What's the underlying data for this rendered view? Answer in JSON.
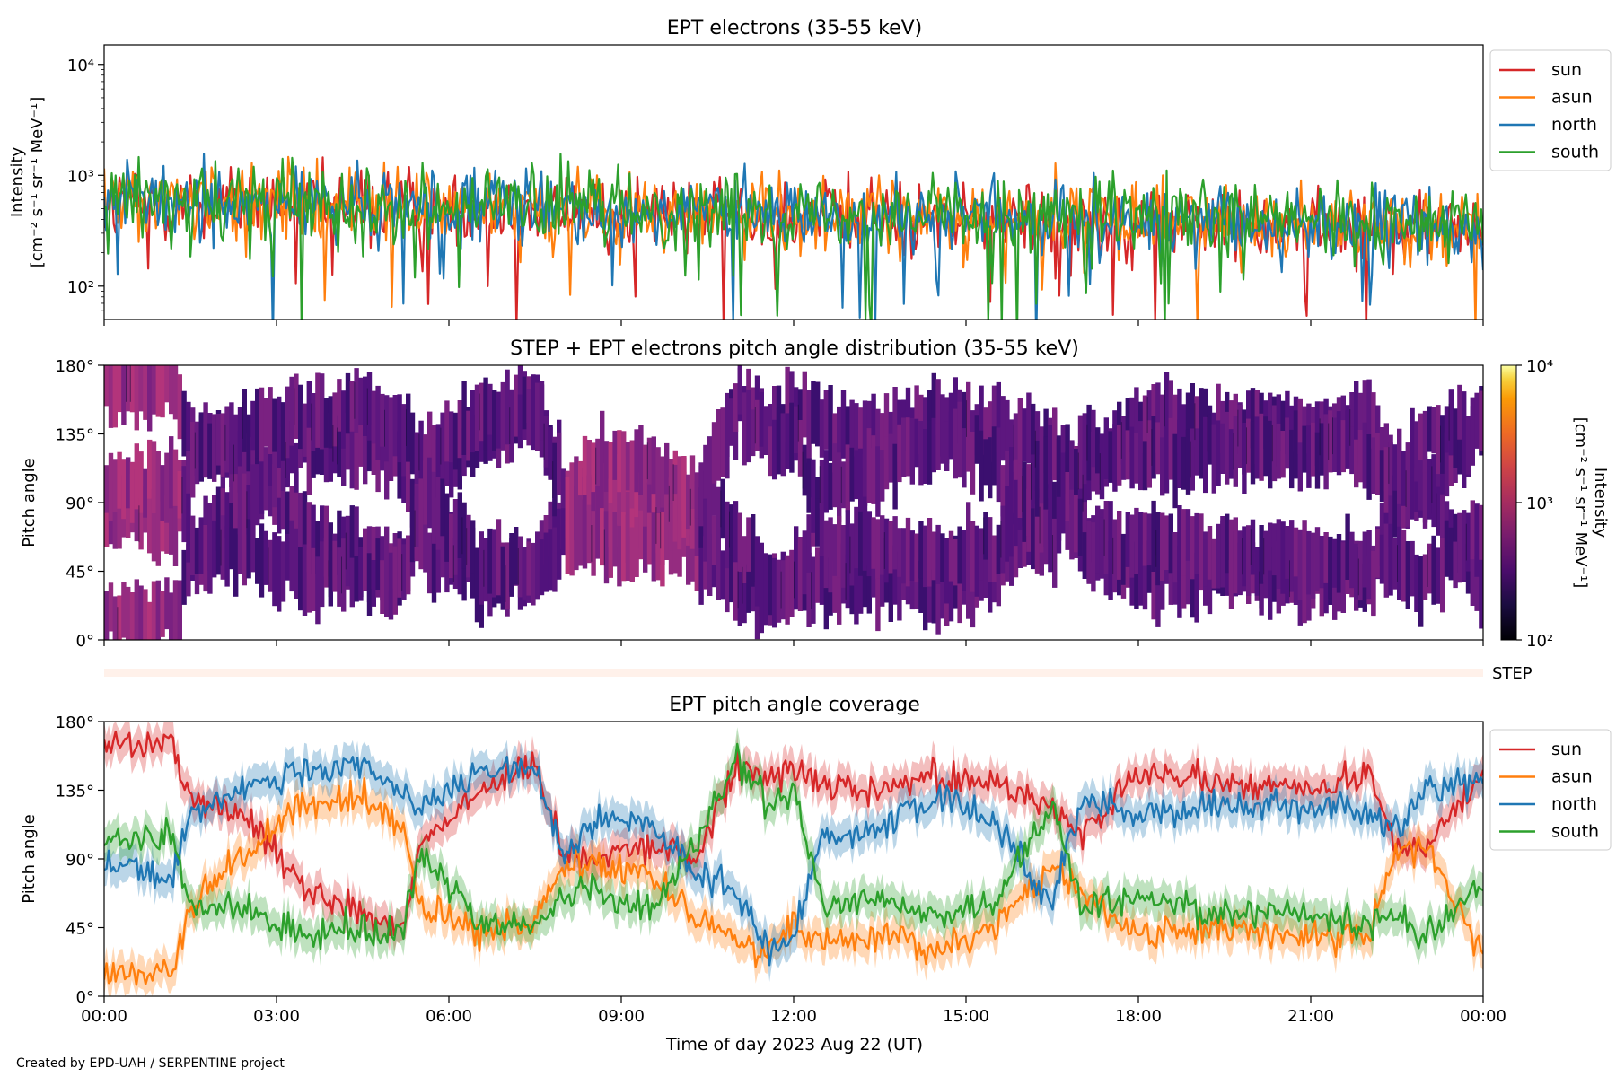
{
  "figure": {
    "credit": "Created by EPD-UAH / SERPENTINE project",
    "xlabel": "Time of day 2023 Aug 22 (UT)",
    "xticks": [
      "00:00",
      "03:00",
      "06:00",
      "09:00",
      "12:00",
      "15:00",
      "18:00",
      "21:00",
      "00:00"
    ],
    "colors": {
      "sun": "#d62728",
      "asun": "#ff7f0e",
      "north": "#1f77b4",
      "south": "#2ca02c"
    }
  },
  "chart_data": [
    {
      "type": "line",
      "title": "EPT electrons (35-55 keV)",
      "ylabel": [
        "Intensity",
        "[cm⁻² s⁻¹ sr⁻¹ MeV⁻¹]"
      ],
      "yscale": "log",
      "ylim": [
        50,
        15000
      ],
      "yticks": [
        {
          "value": 100,
          "label": "10²"
        },
        {
          "value": 1000,
          "label": "10³"
        },
        {
          "value": 10000,
          "label": "10⁴"
        }
      ],
      "xlim_hours": [
        0,
        24
      ],
      "legend": "outside-right",
      "series": [
        {
          "name": "sun",
          "start": 560,
          "end": 330,
          "variability": "high",
          "color": "#d62728"
        },
        {
          "name": "asun",
          "start": 600,
          "end": 350,
          "variability": "high",
          "color": "#ff7f0e"
        },
        {
          "name": "north",
          "start": 600,
          "end": 330,
          "variability": "high",
          "color": "#1f77b4"
        },
        {
          "name": "south",
          "start": 620,
          "end": 360,
          "variability": "high",
          "color": "#2ca02c"
        }
      ]
    },
    {
      "type": "heatmap",
      "title": "STEP + EPT electrons pitch angle distribution (35-55 keV)",
      "ylabel": "Pitch angle",
      "ylim": [
        0,
        180
      ],
      "yticks": [
        "0°",
        "45°",
        "90°",
        "135°",
        "180°"
      ],
      "colorbar": {
        "label": [
          "Intensity",
          "[cm⁻² s⁻¹ sr⁻¹ MeV⁻¹]"
        ],
        "scale": "log",
        "range": [
          100,
          10000
        ],
        "ticks": [
          "10²",
          "10³",
          "10⁴"
        ],
        "colormap": "inferno"
      },
      "step_label": "STEP"
    },
    {
      "type": "line",
      "title": "EPT pitch angle coverage",
      "ylabel": "Pitch angle",
      "ylim": [
        0,
        180
      ],
      "yticks": [
        "0°",
        "45°",
        "90°",
        "135°",
        "180°"
      ],
      "shaded_band": true,
      "legend": "outside-right",
      "series": [
        {
          "name": "sun",
          "color": "#d62728",
          "hours": [
            0,
            1.2,
            1.5,
            2.5,
            3.5,
            4.5,
            5.2,
            5.5,
            6.5,
            7.5,
            8.0,
            8.5,
            9.5,
            10.3,
            11.0,
            11.5,
            12.0,
            12.5,
            13.5,
            14.5,
            15.5,
            16.5,
            17.0,
            18.0,
            19.5,
            21.0,
            22.0,
            22.5,
            23.0,
            24.0
          ],
          "values": [
            165,
            168,
            130,
            118,
            70,
            55,
            45,
            100,
            135,
            150,
            95,
            92,
            100,
            90,
            150,
            145,
            150,
            140,
            135,
            145,
            140,
            125,
            105,
            145,
            140,
            135,
            145,
            95,
            100,
            145
          ]
        },
        {
          "name": "asun",
          "color": "#ff7f0e",
          "hours": [
            0,
            1.2,
            1.5,
            2.5,
            3.5,
            4.5,
            5.2,
            5.5,
            6.5,
            7.5,
            8.0,
            8.5,
            9.5,
            10.3,
            11.0,
            11.5,
            12.0,
            12.5,
            13.5,
            14.5,
            15.5,
            16.5,
            17.0,
            18.0,
            19.5,
            21.0,
            22.0,
            22.5,
            23.0,
            24.0
          ],
          "values": [
            15,
            18,
            60,
            95,
            125,
            130,
            110,
            60,
            40,
            50,
            90,
            88,
            80,
            55,
            35,
            30,
            45,
            35,
            40,
            30,
            45,
            85,
            70,
            40,
            45,
            38,
            40,
            95,
            100,
            30
          ]
        },
        {
          "name": "north",
          "color": "#1f77b4",
          "hours": [
            0,
            1.2,
            1.5,
            2.5,
            3.5,
            4.5,
            5.2,
            5.5,
            6.5,
            7.5,
            8.0,
            8.5,
            9.5,
            10.3,
            11.0,
            11.5,
            12.0,
            12.5,
            13.5,
            14.5,
            15.5,
            16.5,
            17.0,
            18.0,
            19.5,
            21.0,
            22.0,
            22.5,
            23.0,
            24.0
          ],
          "values": [
            90,
            75,
            120,
            140,
            145,
            150,
            135,
            120,
            145,
            150,
            90,
            115,
            115,
            80,
            70,
            30,
            40,
            105,
            110,
            130,
            115,
            60,
            130,
            120,
            125,
            125,
            120,
            110,
            135,
            145
          ]
        },
        {
          "name": "south",
          "color": "#2ca02c",
          "hours": [
            0,
            1.2,
            1.5,
            2.5,
            3.5,
            4.5,
            5.2,
            5.5,
            6.5,
            7.5,
            8.0,
            8.5,
            9.5,
            10.3,
            11.0,
            11.5,
            12.0,
            12.5,
            13.5,
            14.5,
            15.5,
            16.5,
            17.0,
            18.0,
            19.5,
            21.0,
            22.0,
            22.5,
            23.0,
            24.0
          ],
          "values": [
            100,
            105,
            60,
            55,
            40,
            45,
            40,
            95,
            50,
            45,
            65,
            70,
            55,
            100,
            155,
            125,
            135,
            60,
            65,
            50,
            60,
            125,
            60,
            65,
            55,
            55,
            45,
            55,
            40,
            75
          ]
        }
      ]
    }
  ]
}
